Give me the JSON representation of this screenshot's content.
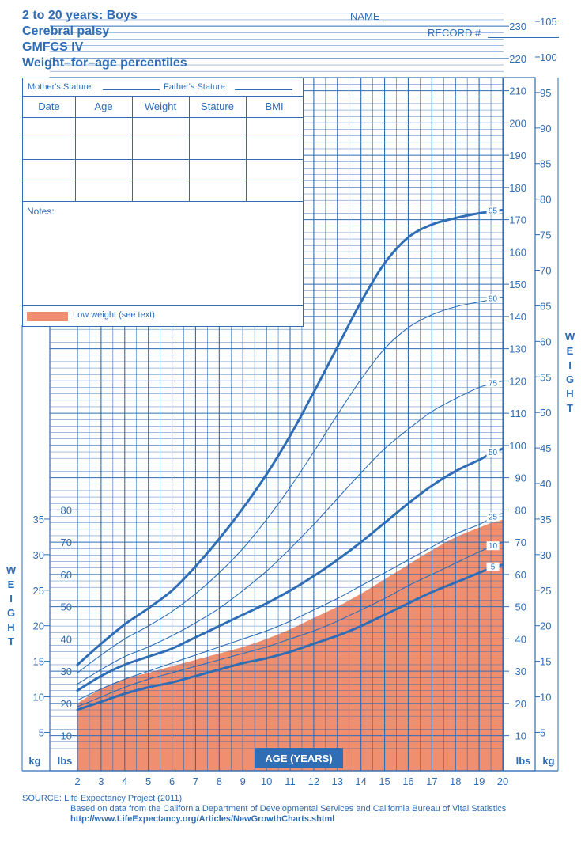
{
  "header": {
    "line1": "2 to 20 years: Boys",
    "line2": "Cerebral palsy",
    "line3": "GMFCS IV",
    "line4": "Weight–for–age percentiles"
  },
  "form": {
    "name_label": "NAME",
    "record_label": "RECORD #",
    "mother_stature_label": "Mother's Stature:",
    "father_stature_label": "Father's Stature:",
    "columns": [
      "Date",
      "Age",
      "Weight",
      "Stature",
      "BMI"
    ],
    "notes_label": "Notes:",
    "legend_label": "Low weight (see text)"
  },
  "colors": {
    "grid": "#2f6db5",
    "curve": "#2f6db5",
    "low_weight_fill": "#f08e70"
  },
  "chart_data": {
    "type": "line",
    "title": "Weight–for–age percentiles",
    "xlabel": "AGE (YEARS)",
    "x_ticks": [
      "2",
      "3",
      "4",
      "5",
      "6",
      "7",
      "8",
      "9",
      "10",
      "11",
      "12",
      "13",
      "14",
      "15",
      "16",
      "17",
      "18",
      "19",
      "20"
    ],
    "xlim": [
      2,
      20
    ],
    "lbs_left_ticks": [
      "10",
      "20",
      "30",
      "40",
      "50",
      "60",
      "70",
      "80"
    ],
    "lbs_right_ticks": [
      "10",
      "20",
      "30",
      "40",
      "50",
      "60",
      "70",
      "80",
      "90",
      "100",
      "110",
      "120",
      "130",
      "140",
      "150",
      "160",
      "170",
      "180",
      "190",
      "200",
      "210",
      "220",
      "230"
    ],
    "kg_left_ticks": [
      "5",
      "10",
      "15",
      "20",
      "25",
      "30",
      "35"
    ],
    "kg_right_ticks": [
      "5",
      "10",
      "15",
      "20",
      "25",
      "30",
      "35",
      "40",
      "45",
      "50",
      "55",
      "60",
      "65",
      "70",
      "75",
      "80",
      "85",
      "90",
      "95",
      "100",
      "105"
    ],
    "lbs_unit": "lbs",
    "kg_unit": "kg",
    "side_label": "WEIGHT",
    "ylim_lbs": [
      5,
      235
    ],
    "x": [
      2,
      3,
      4,
      5,
      6,
      7,
      8,
      9,
      10,
      11,
      12,
      13,
      14,
      15,
      16,
      17,
      18,
      19,
      19.5,
      20
    ],
    "series": [
      {
        "name": "95",
        "values": [
          32.0,
          38.5,
          44.5,
          49.5,
          55.0,
          62.5,
          71.0,
          80.5,
          91.0,
          103.0,
          116.5,
          130.5,
          144.5,
          156.5,
          164.5,
          168.5,
          170.5,
          172.0,
          172.5,
          173.0
        ]
      },
      {
        "name": "90",
        "values": [
          29.5,
          35.0,
          40.0,
          44.0,
          48.5,
          54.0,
          60.5,
          68.0,
          77.0,
          87.0,
          98.0,
          109.5,
          120.5,
          130.0,
          136.5,
          140.5,
          143.0,
          144.5,
          145.2,
          146.0
        ]
      },
      {
        "name": "75",
        "values": [
          26.0,
          30.5,
          34.5,
          37.5,
          41.0,
          45.0,
          49.5,
          55.0,
          61.0,
          68.0,
          75.5,
          83.5,
          91.5,
          99.0,
          105.0,
          110.5,
          114.5,
          118.0,
          119.0,
          120.0
        ]
      },
      {
        "name": "50",
        "values": [
          24.0,
          28.5,
          32.0,
          34.5,
          37.0,
          40.5,
          44.0,
          47.5,
          51.0,
          55.0,
          59.5,
          64.5,
          70.0,
          76.0,
          82.0,
          87.5,
          92.0,
          95.5,
          97.5,
          99.0
        ]
      },
      {
        "name": "25",
        "values": [
          21.0,
          24.5,
          27.5,
          30.0,
          32.5,
          35.0,
          37.5,
          40.0,
          42.5,
          45.5,
          49.0,
          52.5,
          56.5,
          60.5,
          64.5,
          68.5,
          72.5,
          75.5,
          77.5,
          79.0
        ]
      },
      {
        "name": "10",
        "values": [
          19.0,
          22.0,
          25.0,
          27.5,
          29.5,
          31.5,
          33.5,
          35.5,
          37.5,
          40.0,
          42.5,
          45.5,
          49.0,
          52.5,
          56.5,
          60.0,
          63.5,
          67.0,
          68.5,
          70.0
        ]
      },
      {
        "name": "5",
        "values": [
          18.0,
          20.5,
          23.0,
          25.0,
          26.5,
          28.5,
          30.5,
          32.5,
          34.0,
          36.0,
          38.5,
          41.0,
          44.0,
          47.5,
          51.0,
          54.5,
          57.5,
          60.5,
          62.0,
          63.0
        ]
      }
    ],
    "low_weight_upper": [
      20.0,
      24.5,
      27.5,
      29.5,
      31.5,
      33.5,
      35.5,
      37.5,
      40.0,
      43.0,
      46.5,
      50.0,
      54.0,
      58.5,
      63.0,
      67.5,
      71.5,
      74.5,
      76.0,
      77.0
    ]
  },
  "source": {
    "line1": "SOURCE:  Life Expectancy Project (2011)",
    "line2": "Based on data from the California Department of Developmental Services and California Bureau of Vital Statistics",
    "line3": "http://www.LifeExpectancy.org/Articles/NewGrowthCharts.shtml"
  }
}
